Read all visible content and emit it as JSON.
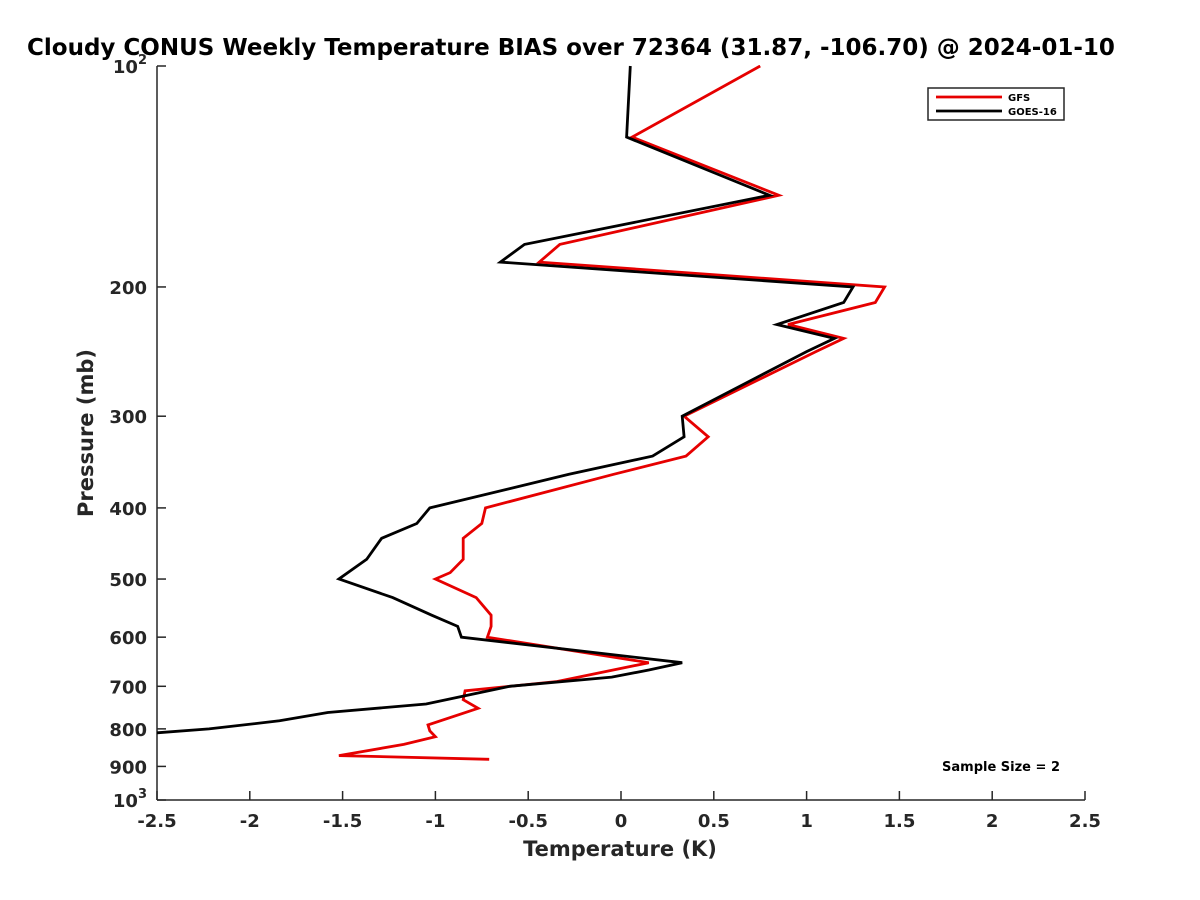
{
  "chart_data": {
    "type": "line",
    "title": "Cloudy CONUS Weekly Temperature BIAS over 72364 (31.87, -106.70) @ 2024-01-10",
    "xlabel": "Temperature (K)",
    "ylabel": "Pressure (mb)",
    "xlim": [
      -2.5,
      2.5
    ],
    "ylim": [
      100,
      1000
    ],
    "y_scale": "log",
    "y_reversed": true,
    "grid": false,
    "legend_position": "top-right",
    "x_ticks": [
      {
        "value": -2.5,
        "label": "-2.5"
      },
      {
        "value": -2,
        "label": "-2"
      },
      {
        "value": -1.5,
        "label": "-1.5"
      },
      {
        "value": -1,
        "label": "-1"
      },
      {
        "value": -0.5,
        "label": "-0.5"
      },
      {
        "value": 0,
        "label": "0"
      },
      {
        "value": 0.5,
        "label": "0.5"
      },
      {
        "value": 1,
        "label": "1"
      },
      {
        "value": 1.5,
        "label": "1.5"
      },
      {
        "value": 2,
        "label": "2"
      },
      {
        "value": 2.5,
        "label": "2.5"
      }
    ],
    "y_ticks": [
      {
        "value": 100,
        "base": "10",
        "exp": "2"
      },
      {
        "value": 200,
        "label": "200"
      },
      {
        "value": 300,
        "label": "300"
      },
      {
        "value": 400,
        "label": "400"
      },
      {
        "value": 500,
        "label": "500"
      },
      {
        "value": 600,
        "label": "600"
      },
      {
        "value": 700,
        "label": "700"
      },
      {
        "value": 800,
        "label": "800"
      },
      {
        "value": 900,
        "label": "900"
      },
      {
        "value": 1000,
        "base": "10",
        "exp": "3"
      }
    ],
    "series": [
      {
        "name": "GFS",
        "color": "#e60000",
        "points": [
          [
            0.75,
            100
          ],
          [
            0.06,
            125
          ],
          [
            0.85,
            150
          ],
          [
            -0.33,
            175
          ],
          [
            -0.44,
            185
          ],
          [
            1.42,
            200
          ],
          [
            1.37,
            210
          ],
          [
            0.9,
            225
          ],
          [
            1.2,
            235
          ],
          [
            1.05,
            245
          ],
          [
            0.34,
            300
          ],
          [
            0.47,
            320
          ],
          [
            0.35,
            340
          ],
          [
            -0.04,
            360
          ],
          [
            -0.73,
            400
          ],
          [
            -0.75,
            420
          ],
          [
            -0.85,
            440
          ],
          [
            -0.85,
            470
          ],
          [
            -0.92,
            490
          ],
          [
            -1.0,
            500
          ],
          [
            -0.78,
            530
          ],
          [
            -0.7,
            560
          ],
          [
            -0.7,
            580
          ],
          [
            -0.72,
            600
          ],
          [
            0.15,
            650
          ],
          [
            -0.35,
            690
          ],
          [
            -0.84,
            710
          ],
          [
            -0.85,
            730
          ],
          [
            -0.77,
            750
          ],
          [
            -1.04,
            790
          ],
          [
            -1.03,
            805
          ],
          [
            -1.0,
            820
          ],
          [
            -1.17,
            840
          ],
          [
            -1.52,
            870
          ],
          [
            -0.71,
            880
          ]
        ]
      },
      {
        "name": "GOES-16",
        "color": "#000000",
        "points": [
          [
            0.05,
            100
          ],
          [
            0.03,
            125
          ],
          [
            0.8,
            150
          ],
          [
            -0.52,
            175
          ],
          [
            -0.65,
            185
          ],
          [
            1.25,
            200
          ],
          [
            1.2,
            210
          ],
          [
            0.84,
            225
          ],
          [
            1.15,
            235
          ],
          [
            1.0,
            245
          ],
          [
            0.33,
            300
          ],
          [
            0.34,
            320
          ],
          [
            0.17,
            340
          ],
          [
            -0.28,
            360
          ],
          [
            -1.03,
            400
          ],
          [
            -1.1,
            420
          ],
          [
            -1.29,
            440
          ],
          [
            -1.37,
            470
          ],
          [
            -1.52,
            500
          ],
          [
            -1.23,
            530
          ],
          [
            -1.02,
            560
          ],
          [
            -0.88,
            580
          ],
          [
            -0.86,
            600
          ],
          [
            0.33,
            650
          ],
          [
            0.15,
            665
          ],
          [
            -0.05,
            680
          ],
          [
            -0.6,
            700
          ],
          [
            -1.05,
            740
          ],
          [
            -1.58,
            760
          ],
          [
            -1.84,
            780
          ],
          [
            -2.22,
            800
          ],
          [
            -2.5,
            810
          ]
        ]
      }
    ],
    "annotations": [
      {
        "text": "Sample Size = 2",
        "position": "bottom-right"
      }
    ]
  }
}
